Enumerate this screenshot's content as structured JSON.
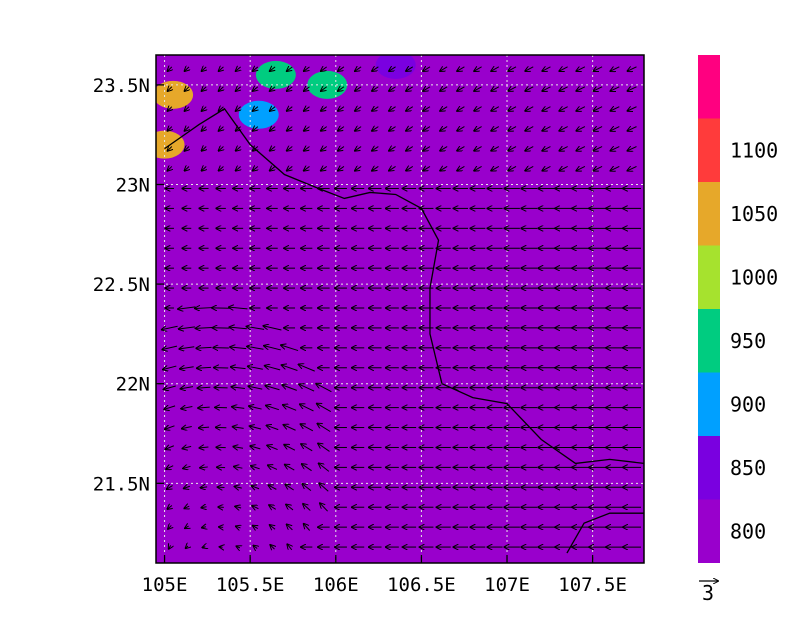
{
  "chart_data": {
    "type": "heatmap",
    "title": "",
    "xlabel": "",
    "ylabel": "",
    "xlim": [
      104.95,
      107.8
    ],
    "ylim": [
      21.1,
      23.65
    ],
    "grid": true,
    "x_ticks": [
      {
        "value": 105.0,
        "label": "105E"
      },
      {
        "value": 105.5,
        "label": "105.5E"
      },
      {
        "value": 106.0,
        "label": "106E"
      },
      {
        "value": 106.5,
        "label": "106.5E"
      },
      {
        "value": 107.0,
        "label": "107E"
      },
      {
        "value": 107.5,
        "label": "107.5E"
      }
    ],
    "y_ticks": [
      {
        "value": 21.5,
        "label": "21.5N"
      },
      {
        "value": 22.0,
        "label": "22N"
      },
      {
        "value": 22.5,
        "label": "22.5N"
      },
      {
        "value": 23.0,
        "label": "23N"
      },
      {
        "value": 23.5,
        "label": "23.5N"
      }
    ],
    "colorbar": {
      "placement": "right",
      "levels": [
        {
          "value": 800,
          "label": "800",
          "color": "#9900cc"
        },
        {
          "value": 850,
          "label": "850",
          "color": "#7a00e0"
        },
        {
          "value": 900,
          "label": "900",
          "color": "#00a0ff"
        },
        {
          "value": 950,
          "label": "950",
          "color": "#00cc80"
        },
        {
          "value": 1000,
          "label": "1000",
          "color": "#a6e22e"
        },
        {
          "value": 1050,
          "label": "1050",
          "color": "#e6a82a"
        },
        {
          "value": 1100,
          "label": "1100",
          "color": "#ff3b3b"
        }
      ],
      "top_color": "#ff0080"
    },
    "background_field_value": 830,
    "high_value_patches": [
      {
        "lon": 105.05,
        "lat": 23.45,
        "value": 1060
      },
      {
        "lon": 105.0,
        "lat": 23.2,
        "value": 1080
      },
      {
        "lon": 105.55,
        "lat": 23.35,
        "value": 900
      },
      {
        "lon": 105.65,
        "lat": 23.55,
        "value": 950
      },
      {
        "lon": 105.95,
        "lat": 23.5,
        "value": 950
      },
      {
        "lon": 106.35,
        "lat": 23.6,
        "value": 880
      }
    ],
    "wind_vectors": {
      "reference_label": "3",
      "reference_magnitude": 3,
      "description_values": "u,v in m/s; dominant easterly flow"
    },
    "boundary_lines": [
      [
        [
          105.0,
          23.18
        ],
        [
          105.2,
          23.3
        ],
        [
          105.35,
          23.38
        ],
        [
          105.5,
          23.2
        ],
        [
          105.7,
          23.05
        ],
        [
          105.9,
          22.98
        ],
        [
          106.05,
          22.93
        ],
        [
          106.2,
          22.96
        ],
        [
          106.35,
          22.95
        ],
        [
          106.5,
          22.88
        ],
        [
          106.6,
          22.72
        ],
        [
          106.55,
          22.48
        ],
        [
          106.55,
          22.25
        ],
        [
          106.62,
          22.0
        ],
        [
          106.8,
          21.93
        ],
        [
          107.0,
          21.9
        ],
        [
          107.2,
          21.72
        ],
        [
          107.4,
          21.6
        ],
        [
          107.6,
          21.62
        ],
        [
          107.8,
          21.6
        ]
      ],
      [
        [
          107.35,
          21.15
        ],
        [
          107.45,
          21.3
        ],
        [
          107.6,
          21.35
        ],
        [
          107.8,
          21.35
        ]
      ]
    ]
  }
}
